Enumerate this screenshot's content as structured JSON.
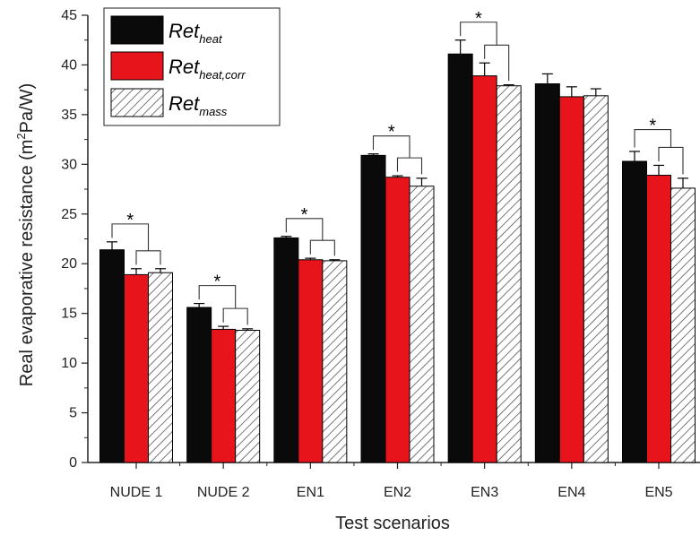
{
  "chart_data": {
    "type": "bar",
    "xlabel": "Test scenarios",
    "ylabel_pre": "Real evaporative resistance (m",
    "ylabel_sup": "2",
    "ylabel_post": "Pa/W)",
    "ylim": [
      0,
      45
    ],
    "yticks": [
      0,
      5,
      10,
      15,
      20,
      25,
      30,
      35,
      40,
      45
    ],
    "categories": [
      "NUDE 1",
      "NUDE 2",
      "EN1",
      "EN2",
      "EN3",
      "EN4",
      "EN5"
    ],
    "series": [
      {
        "name_main": "Ret",
        "name_sub": "heat",
        "fill": "#0a0a0a",
        "pattern": "solid",
        "values": [
          21.4,
          15.6,
          22.6,
          30.9,
          41.1,
          38.1,
          30.3
        ],
        "errors": [
          0.8,
          0.4,
          0.15,
          0.15,
          1.4,
          1.0,
          1.0
        ]
      },
      {
        "name_main": "Ret",
        "name_sub": "heat,corr",
        "fill": "#e8141b",
        "pattern": "solid",
        "values": [
          18.9,
          13.4,
          20.4,
          28.7,
          38.9,
          36.8,
          28.9
        ],
        "errors": [
          0.6,
          0.3,
          0.15,
          0.15,
          1.3,
          1.0,
          1.0
        ]
      },
      {
        "name_main": "Ret",
        "name_sub": "mass",
        "fill": "#ffffff",
        "pattern": "hatch",
        "values": [
          19.1,
          13.3,
          20.3,
          27.8,
          37.9,
          36.9,
          27.6
        ],
        "errors": [
          0.4,
          0.15,
          0.1,
          0.8,
          0.1,
          0.7,
          1.0
        ]
      }
    ],
    "significance_marker": "*",
    "significant_categories": [
      "NUDE 1",
      "NUDE 2",
      "EN1",
      "EN2",
      "EN3",
      "EN5"
    ],
    "legend_position": "top-left",
    "grid": false
  },
  "colors": {
    "axis": "#222222",
    "hatch_line": "#555555"
  }
}
